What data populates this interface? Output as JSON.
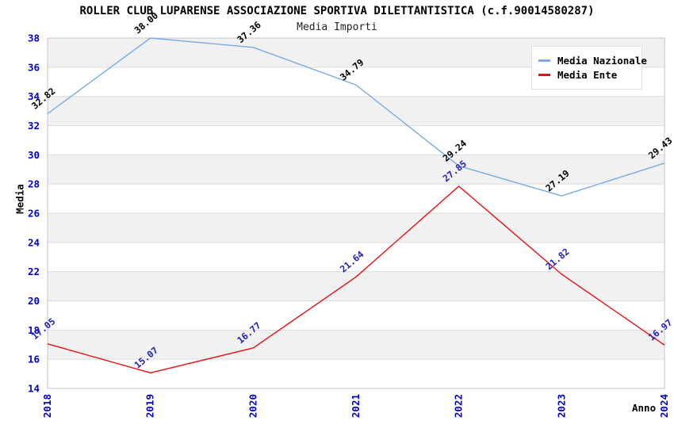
{
  "chart_data": {
    "type": "line",
    "title": "ROLLER CLUB LUPARENSE ASSOCIAZIONE SPORTIVA DILETTANTISTICA (c.f.90014580287)",
    "subtitle": "Media Importi",
    "xlabel": "Anno",
    "ylabel": "Media",
    "categories": [
      "2018",
      "2019",
      "2020",
      "2021",
      "2022",
      "2023",
      "2024"
    ],
    "series": [
      {
        "name": "Media Nazionale",
        "color": "#78abe0",
        "label_color": "#000000",
        "values": [
          32.82,
          38.0,
          37.36,
          34.79,
          29.24,
          27.19,
          29.43
        ]
      },
      {
        "name": "Media Ente",
        "color": "#e81010",
        "label_color": "#2222bb",
        "values": [
          17.05,
          15.07,
          16.77,
          21.64,
          27.85,
          21.82,
          16.97
        ]
      }
    ],
    "ylim": [
      14,
      38
    ],
    "y_tick_step": 2,
    "y_ticks": [
      14,
      16,
      18,
      20,
      22,
      24,
      26,
      28,
      30,
      32,
      34,
      36,
      38
    ],
    "legend_position": "top-right",
    "grid": "horizontal gridlines with alternating shaded bands",
    "colors": {
      "tick_label": "#0000cc",
      "grid_line": "#dcdcdc",
      "band_fill": "#f1f1f1",
      "plot_border": "#c4c4c4",
      "background": "#ffffff"
    }
  }
}
